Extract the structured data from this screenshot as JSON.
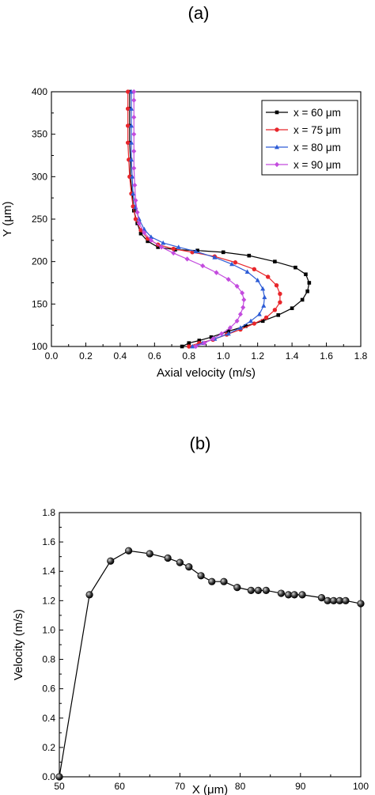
{
  "panel_labels": [
    "(a)",
    "(b)"
  ],
  "chart_data": [
    {
      "type": "line",
      "xlabel": "Axial velocity (m/s)",
      "ylabel": "Y (μm)",
      "xlim": [
        0.0,
        1.8
      ],
      "ylim": [
        100,
        400
      ],
      "xticks": [
        "0.0",
        "0.2",
        "0.4",
        "0.6",
        "0.8",
        "1.0",
        "1.2",
        "1.4",
        "1.6",
        "1.8"
      ],
      "yticks": [
        "100",
        "150",
        "200",
        "250",
        "300",
        "350",
        "400"
      ],
      "legend_position": "top-right",
      "grid": false,
      "series": [
        {
          "name": "x = 60 μm",
          "color": "#000000",
          "marker": "square",
          "points": [
            [
              0.76,
              100
            ],
            [
              0.8,
              104
            ],
            [
              0.86,
              107
            ],
            [
              0.93,
              111
            ],
            [
              1.03,
              118
            ],
            [
              1.13,
              124
            ],
            [
              1.23,
              130
            ],
            [
              1.32,
              137
            ],
            [
              1.4,
              145
            ],
            [
              1.46,
              155
            ],
            [
              1.49,
              165
            ],
            [
              1.5,
              175
            ],
            [
              1.48,
              185
            ],
            [
              1.42,
              193
            ],
            [
              1.3,
              200
            ],
            [
              1.15,
              207
            ],
            [
              1.0,
              211
            ],
            [
              0.85,
              213
            ],
            [
              0.72,
              214
            ],
            [
              0.62,
              217
            ],
            [
              0.56,
              224
            ],
            [
              0.52,
              233
            ],
            [
              0.5,
              245
            ],
            [
              0.48,
              260
            ],
            [
              0.47,
              280
            ],
            [
              0.46,
              300
            ],
            [
              0.46,
              320
            ],
            [
              0.455,
              340
            ],
            [
              0.455,
              360
            ],
            [
              0.455,
              380
            ],
            [
              0.455,
              400
            ]
          ]
        },
        {
          "name": "x = 75 μm",
          "color": "#e8262b",
          "marker": "circle",
          "points": [
            [
              0.8,
              100
            ],
            [
              0.86,
              104
            ],
            [
              0.94,
              108
            ],
            [
              1.02,
              114
            ],
            [
              1.1,
              120
            ],
            [
              1.18,
              127
            ],
            [
              1.25,
              134
            ],
            [
              1.3,
              143
            ],
            [
              1.33,
              152
            ],
            [
              1.33,
              162
            ],
            [
              1.31,
              172
            ],
            [
              1.26,
              182
            ],
            [
              1.18,
              191
            ],
            [
              1.07,
              199
            ],
            [
              0.95,
              206
            ],
            [
              0.82,
              211
            ],
            [
              0.71,
              215
            ],
            [
              0.62,
              220
            ],
            [
              0.56,
              227
            ],
            [
              0.52,
              237
            ],
            [
              0.49,
              250
            ],
            [
              0.475,
              265
            ],
            [
              0.465,
              280
            ],
            [
              0.455,
              300
            ],
            [
              0.45,
              320
            ],
            [
              0.445,
              340
            ],
            [
              0.445,
              360
            ],
            [
              0.445,
              380
            ],
            [
              0.445,
              400
            ]
          ]
        },
        {
          "name": "x = 80 μm",
          "color": "#2d5cd6",
          "marker": "triangle",
          "points": [
            [
              0.82,
              100
            ],
            [
              0.88,
              104
            ],
            [
              0.95,
              109
            ],
            [
              1.03,
              115
            ],
            [
              1.1,
              122
            ],
            [
              1.16,
              130
            ],
            [
              1.21,
              138
            ],
            [
              1.235,
              148
            ],
            [
              1.24,
              158
            ],
            [
              1.23,
              168
            ],
            [
              1.2,
              178
            ],
            [
              1.14,
              188
            ],
            [
              1.05,
              197
            ],
            [
              0.95,
              205
            ],
            [
              0.84,
              212
            ],
            [
              0.74,
              217
            ],
            [
              0.65,
              222
            ],
            [
              0.58,
              229
            ],
            [
              0.54,
              238
            ],
            [
              0.51,
              250
            ],
            [
              0.49,
              264
            ],
            [
              0.475,
              280
            ],
            [
              0.47,
              300
            ],
            [
              0.465,
              320
            ],
            [
              0.465,
              340
            ],
            [
              0.465,
              360
            ],
            [
              0.465,
              380
            ],
            [
              0.465,
              400
            ]
          ]
        },
        {
          "name": "x = 90 μm",
          "color": "#c34bde",
          "marker": "diamond",
          "points": [
            [
              0.84,
              100
            ],
            [
              0.89,
              104
            ],
            [
              0.94,
              109
            ],
            [
              0.99,
              115
            ],
            [
              1.04,
              122
            ],
            [
              1.08,
              130
            ],
            [
              1.1,
              138
            ],
            [
              1.115,
              146
            ],
            [
              1.12,
              155
            ],
            [
              1.11,
              163
            ],
            [
              1.08,
              171
            ],
            [
              1.03,
              179
            ],
            [
              0.96,
              187
            ],
            [
              0.88,
              195
            ],
            [
              0.79,
              203
            ],
            [
              0.71,
              210
            ],
            [
              0.64,
              217
            ],
            [
              0.58,
              225
            ],
            [
              0.54,
              234
            ],
            [
              0.51,
              245
            ],
            [
              0.5,
              258
            ],
            [
              0.49,
              272
            ],
            [
              0.485,
              290
            ],
            [
              0.48,
              310
            ],
            [
              0.48,
              330
            ],
            [
              0.48,
              350
            ],
            [
              0.48,
              370
            ],
            [
              0.48,
              390
            ],
            [
              0.48,
              400
            ]
          ]
        }
      ]
    },
    {
      "type": "line",
      "xlabel": "X (μm)",
      "ylabel": "Velocity (m/s)",
      "xlim": [
        50,
        100
      ],
      "ylim": [
        0.0,
        1.8
      ],
      "xticks": [
        "50",
        "60",
        "70",
        "80",
        "90",
        "100"
      ],
      "yticks": [
        "0.0",
        "0.2",
        "0.4",
        "0.6",
        "0.8",
        "1.0",
        "1.2",
        "1.4",
        "1.6",
        "1.8"
      ],
      "grid": false,
      "series": [
        {
          "color": "#000000",
          "marker": "sphere",
          "points": [
            [
              50,
              0.0
            ],
            [
              55,
              1.24
            ],
            [
              58.5,
              1.47
            ],
            [
              61.5,
              1.54
            ],
            [
              65,
              1.52
            ],
            [
              68,
              1.49
            ],
            [
              70,
              1.46
            ],
            [
              71.5,
              1.43
            ],
            [
              73.5,
              1.37
            ],
            [
              75.3,
              1.33
            ],
            [
              77.3,
              1.33
            ],
            [
              79.5,
              1.29
            ],
            [
              81.8,
              1.27
            ],
            [
              83,
              1.27
            ],
            [
              84.3,
              1.27
            ],
            [
              86.8,
              1.25
            ],
            [
              88,
              1.24
            ],
            [
              89,
              1.24
            ],
            [
              90.3,
              1.24
            ],
            [
              93.5,
              1.22
            ],
            [
              94.5,
              1.2
            ],
            [
              95.5,
              1.2
            ],
            [
              96.5,
              1.2
            ],
            [
              97.5,
              1.2
            ],
            [
              100,
              1.18
            ]
          ]
        }
      ]
    }
  ]
}
